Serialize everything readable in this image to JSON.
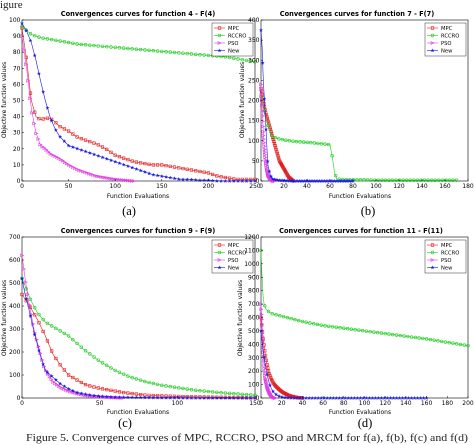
{
  "figure": {
    "header_fragment": "igure",
    "caption": "Figure 5. Convergence curves of MPC, RCCRO, PSO and MRCM for f(a), f(b), f(c) and f(d)",
    "subfigure_labels": [
      "(a)",
      "(b)",
      "(c)",
      "(d)"
    ]
  },
  "legend_entries": [
    "MPC",
    "RCCRO",
    "PSO",
    "New"
  ],
  "colors": {
    "MPC": "#e41b1b",
    "RCCRO": "#22cc22",
    "PSO": "#e040e0",
    "New": "#1a1ae6"
  },
  "chart_data": [
    {
      "type": "line",
      "title": "Convergences curves for function 4 - F(4)",
      "xlabel": "Function Evaluations",
      "ylabel": "Objective function values",
      "xlim": [
        0,
        250
      ],
      "ylim": [
        0,
        100
      ],
      "xticks": [
        "0",
        "50",
        "100",
        "150",
        "200",
        "250"
      ],
      "yticks": [
        "0",
        "10",
        "20",
        "30",
        "40",
        "50",
        "60",
        "70",
        "80",
        "90",
        "100"
      ],
      "legend_position": "top-right",
      "series": [
        {
          "name": "MPC",
          "x": [
            0,
            5,
            10,
            15,
            20,
            25,
            30,
            35,
            40,
            50,
            60,
            70,
            80,
            90,
            100,
            110,
            120,
            130,
            140,
            150,
            160,
            170,
            180,
            190,
            200,
            210,
            220,
            230,
            240,
            250
          ],
          "y": [
            95,
            75,
            50,
            40,
            38,
            39,
            39,
            37,
            34,
            31,
            27,
            25,
            23,
            20,
            16,
            14,
            12,
            11,
            10,
            10,
            9,
            8,
            7,
            6,
            5,
            3,
            2,
            1,
            1,
            1
          ]
        },
        {
          "name": "RCCRO",
          "x": [
            0,
            10,
            20,
            30,
            40,
            50,
            60,
            70,
            80,
            90,
            100,
            110,
            120,
            130,
            140,
            150,
            160,
            170,
            180,
            190,
            200,
            210,
            220,
            230,
            240,
            250
          ],
          "y": [
            96,
            91,
            89,
            88,
            87,
            86,
            85,
            84.5,
            84,
            83.5,
            83,
            82.5,
            82,
            81.5,
            81,
            80.5,
            80,
            79.5,
            79,
            78.5,
            78,
            77.5,
            77,
            76,
            75,
            74
          ]
        },
        {
          "name": "PSO",
          "x": [
            0,
            5,
            10,
            15,
            20,
            25,
            30,
            40,
            50,
            60,
            70,
            80,
            90,
            100,
            110,
            120
          ],
          "y": [
            90,
            70,
            45,
            30,
            22,
            20,
            17,
            14,
            10,
            7,
            5,
            3,
            2,
            1,
            0.5,
            0
          ]
        },
        {
          "name": "New",
          "x": [
            0,
            5,
            10,
            15,
            20,
            25,
            30,
            35,
            40,
            45,
            50,
            60,
            70,
            80,
            90,
            100,
            110,
            120,
            130,
            140,
            150,
            160,
            170,
            180,
            190,
            200,
            210,
            220,
            230,
            240,
            250
          ],
          "y": [
            98,
            93,
            86,
            75,
            62,
            50,
            40,
            33,
            28,
            25,
            22,
            20,
            18,
            16,
            14,
            12,
            10,
            8,
            6,
            4,
            3,
            2,
            1,
            1,
            0.5,
            0.5,
            0,
            0,
            0,
            0,
            0
          ]
        }
      ]
    },
    {
      "type": "line",
      "title": "Convergences curves for function 7 - F(7)",
      "xlabel": "Function Evaluations",
      "ylabel": "Objective function values",
      "xlim": [
        0,
        180
      ],
      "ylim": [
        0,
        400
      ],
      "xticks": [
        "0",
        "20",
        "40",
        "60",
        "80",
        "100",
        "120",
        "140",
        "160",
        "180"
      ],
      "yticks": [
        "0",
        "50",
        "100",
        "150",
        "200",
        "250",
        "300",
        "350",
        "400"
      ],
      "legend_position": "top-right",
      "series": [
        {
          "name": "MPC",
          "x": [
            0,
            2,
            4,
            6,
            8,
            10,
            12,
            14,
            16,
            18,
            20,
            22,
            24,
            26,
            28
          ],
          "y": [
            230,
            200,
            170,
            150,
            130,
            110,
            90,
            70,
            50,
            40,
            30,
            20,
            10,
            5,
            0
          ]
        },
        {
          "name": "RCCRO",
          "x": [
            0,
            2,
            4,
            6,
            8,
            10,
            15,
            20,
            25,
            30,
            35,
            40,
            45,
            50,
            55,
            60,
            62,
            64,
            66,
            70,
            80,
            90,
            100,
            110,
            120,
            130,
            140,
            150,
            160,
            170
          ],
          "y": [
            210,
            190,
            160,
            140,
            120,
            110,
            105,
            102,
            100,
            98,
            97,
            96,
            95,
            93,
            92,
            90,
            60,
            20,
            5,
            4,
            3,
            3,
            2,
            2,
            2,
            2,
            2,
            2,
            2,
            2
          ]
        },
        {
          "name": "PSO",
          "x": [
            0,
            1,
            2,
            3,
            4,
            5,
            6,
            8,
            10,
            12
          ],
          "y": [
            240,
            180,
            120,
            80,
            50,
            30,
            15,
            5,
            1,
            0
          ]
        },
        {
          "name": "New",
          "x": [
            0,
            1,
            2,
            3,
            4,
            5,
            6,
            8,
            10,
            15,
            20,
            30,
            40,
            50,
            60,
            70,
            80
          ],
          "y": [
            375,
            330,
            250,
            200,
            150,
            90,
            40,
            15,
            5,
            2,
            1,
            0,
            0,
            0,
            0,
            0,
            0
          ]
        }
      ]
    },
    {
      "type": "line",
      "title": "Convergences curves for function 9 - F(9)",
      "xlabel": "Function Evaluations",
      "ylabel": "Objective function values",
      "xlim": [
        0,
        150
      ],
      "ylim": [
        0,
        700
      ],
      "xticks": [
        "0",
        "50",
        "100",
        "150"
      ],
      "yticks": [
        "0",
        "100",
        "200",
        "300",
        "400",
        "500",
        "600",
        "700"
      ],
      "legend_position": "top-right",
      "series": [
        {
          "name": "MPC",
          "x": [
            0,
            5,
            10,
            15,
            20,
            25,
            30,
            35,
            40,
            45,
            50,
            55,
            60,
            65,
            70,
            75,
            80,
            90,
            100,
            110,
            120,
            130,
            140,
            150
          ],
          "y": [
            450,
            400,
            340,
            270,
            190,
            140,
            100,
            80,
            60,
            50,
            42,
            36,
            30,
            24,
            20,
            16,
            12,
            9,
            7,
            5,
            4,
            3,
            2,
            1
          ]
        },
        {
          "name": "RCCRO",
          "x": [
            0,
            3,
            6,
            10,
            15,
            20,
            25,
            30,
            35,
            40,
            50,
            60,
            70,
            80,
            90,
            100,
            110,
            120,
            130,
            140,
            150
          ],
          "y": [
            520,
            470,
            420,
            370,
            330,
            310,
            290,
            270,
            240,
            210,
            160,
            120,
            90,
            70,
            55,
            45,
            35,
            28,
            22,
            17,
            12
          ]
        },
        {
          "name": "PSO",
          "x": [
            0,
            2,
            4,
            6,
            8,
            10,
            12,
            14,
            16,
            18,
            20,
            25,
            30,
            35,
            40,
            45,
            50,
            55,
            60,
            65
          ],
          "y": [
            620,
            520,
            430,
            360,
            290,
            240,
            190,
            140,
            110,
            90,
            70,
            45,
            30,
            20,
            12,
            8,
            5,
            3,
            1,
            0
          ]
        },
        {
          "name": "New",
          "x": [
            0,
            2,
            4,
            6,
            8,
            10,
            12,
            15,
            20,
            25,
            30,
            35,
            40,
            45,
            50,
            55,
            60,
            70,
            80,
            90,
            100,
            110,
            120,
            130,
            140,
            150
          ],
          "y": [
            520,
            450,
            400,
            340,
            280,
            230,
            180,
            120,
            90,
            60,
            40,
            25,
            18,
            12,
            8,
            6,
            4,
            3,
            2,
            1,
            1,
            0,
            0,
            0,
            0,
            0
          ]
        }
      ]
    },
    {
      "type": "line",
      "title": "Convergences curves for function 11 - F(11)",
      "xlabel": "Function Evaluations",
      "ylabel": "Objective function values",
      "xlim": [
        0,
        200
      ],
      "ylim": [
        0,
        1200
      ],
      "xticks": [
        "0",
        "20",
        "40",
        "60",
        "80",
        "100",
        "120",
        "140",
        "160",
        "180",
        "200"
      ],
      "yticks": [
        "0",
        "100",
        "200",
        "300",
        "400",
        "500",
        "600",
        "700",
        "800",
        "900",
        "1000",
        "1100",
        "1200"
      ],
      "legend_position": "top-right",
      "series": [
        {
          "name": "MPC",
          "x": [
            0,
            2,
            4,
            6,
            8,
            10,
            12,
            14,
            16,
            18,
            20,
            22,
            24,
            26,
            28,
            30,
            32,
            34,
            36,
            38,
            40
          ],
          "y": [
            600,
            450,
            330,
            240,
            180,
            140,
            110,
            90,
            75,
            60,
            48,
            38,
            30,
            22,
            16,
            12,
            8,
            5,
            3,
            1,
            0
          ]
        },
        {
          "name": "RCCRO",
          "x": [
            0,
            1,
            2,
            3,
            5,
            8,
            10,
            20,
            30,
            40,
            60,
            80,
            100,
            120,
            140,
            160,
            180,
            200
          ],
          "y": [
            1100,
            900,
            760,
            700,
            660,
            640,
            630,
            610,
            590,
            570,
            540,
            520,
            500,
            480,
            460,
            440,
            415,
            390
          ]
        },
        {
          "name": "PSO",
          "x": [
            0,
            1,
            2,
            3,
            4,
            6,
            8,
            10,
            12,
            14
          ],
          "y": [
            700,
            550,
            380,
            250,
            150,
            80,
            40,
            15,
            5,
            0
          ]
        },
        {
          "name": "New",
          "x": [
            0,
            2,
            4,
            6,
            8,
            10,
            12,
            14,
            16,
            18,
            20,
            24,
            28,
            32,
            36,
            40,
            60,
            80,
            100,
            120,
            140,
            160
          ],
          "y": [
            500,
            350,
            250,
            170,
            110,
            70,
            45,
            30,
            20,
            12,
            7,
            3,
            1,
            0,
            0,
            0,
            0,
            0,
            0,
            0,
            0,
            0
          ]
        }
      ]
    }
  ]
}
